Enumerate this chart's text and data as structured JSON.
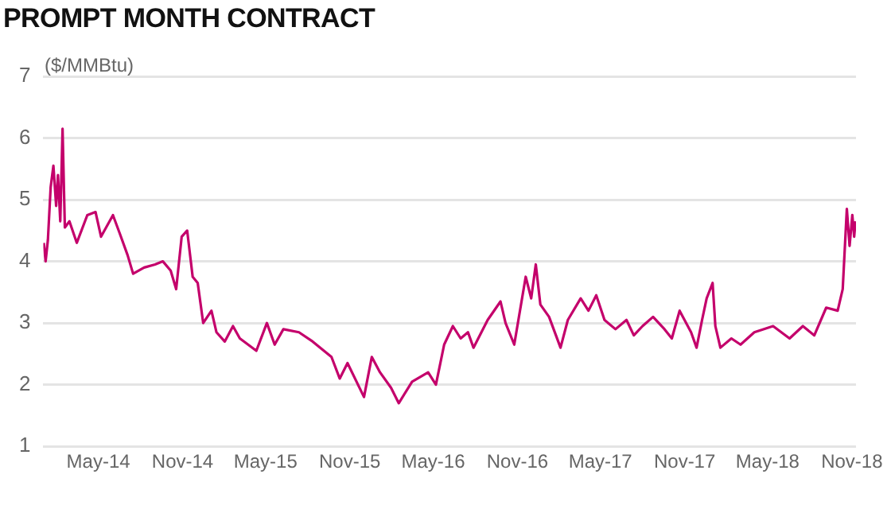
{
  "chart_data": {
    "type": "line",
    "title": "PROMPT MONTH CONTRACT",
    "ylabel": "($/MMBtu)",
    "x": [
      "2014-01-02",
      "2014-01-06",
      "2014-01-11",
      "2014-01-17",
      "2014-01-23",
      "2014-01-29",
      "2014-02-02",
      "2014-02-07",
      "2014-02-12",
      "2014-02-17",
      "2014-02-27",
      "2014-03-15",
      "2014-04-07",
      "2014-04-25",
      "2014-05-07",
      "2014-06-02",
      "2014-06-17",
      "2014-07-04",
      "2014-07-16",
      "2014-08-09",
      "2014-09-02",
      "2014-09-19",
      "2014-10-06",
      "2014-10-18",
      "2014-10-30",
      "2014-11-11",
      "2014-11-23",
      "2014-12-04",
      "2014-12-16",
      "2015-01-03",
      "2015-01-14",
      "2015-02-01",
      "2015-02-19",
      "2015-03-06",
      "2015-03-24",
      "2015-04-11",
      "2015-05-04",
      "2015-05-21",
      "2015-06-09",
      "2015-07-13",
      "2015-08-12",
      "2015-09-22",
      "2015-10-10",
      "2015-10-27",
      "2015-12-02",
      "2015-12-19",
      "2016-01-06",
      "2016-01-30",
      "2016-02-16",
      "2016-03-16",
      "2016-04-20",
      "2016-05-07",
      "2016-05-25",
      "2016-06-13",
      "2016-06-30",
      "2016-07-16",
      "2016-07-28",
      "2016-08-28",
      "2016-09-25",
      "2016-10-06",
      "2016-10-25",
      "2016-11-19",
      "2016-12-01",
      "2016-12-11",
      "2016-12-21",
      "2017-01-09",
      "2017-02-03",
      "2017-02-19",
      "2017-03-19",
      "2017-04-05",
      "2017-04-22",
      "2017-05-10",
      "2017-06-03",
      "2017-06-27",
      "2017-07-13",
      "2017-08-01",
      "2017-08-24",
      "2017-09-18",
      "2017-10-04",
      "2017-10-21",
      "2017-11-15",
      "2017-11-27",
      "2017-12-09",
      "2017-12-19",
      "2018-01-01",
      "2018-01-07",
      "2018-01-18",
      "2018-02-11",
      "2018-03-03",
      "2018-04-02",
      "2018-05-13",
      "2018-06-18",
      "2018-07-17",
      "2018-08-11",
      "2018-09-06",
      "2018-10-01",
      "2018-10-12",
      "2018-10-21",
      "2018-10-27",
      "2018-11-02",
      "2018-11-06",
      "2018-11-09"
    ],
    "series": [
      {
        "color": "#c4006b",
        "values": [
          4.3,
          4.0,
          4.35,
          5.2,
          5.55,
          4.9,
          5.4,
          4.65,
          6.15,
          4.55,
          4.65,
          4.3,
          4.75,
          4.8,
          4.4,
          4.75,
          4.45,
          4.1,
          3.8,
          3.9,
          3.95,
          4.0,
          3.85,
          3.55,
          4.4,
          4.5,
          3.75,
          3.65,
          3.0,
          3.2,
          2.85,
          2.7,
          2.95,
          2.75,
          2.65,
          2.55,
          3.0,
          2.65,
          2.9,
          2.85,
          2.7,
          2.45,
          2.1,
          2.35,
          1.8,
          2.45,
          2.2,
          1.95,
          1.7,
          2.05,
          2.2,
          2.0,
          2.65,
          2.95,
          2.75,
          2.85,
          2.6,
          3.05,
          3.35,
          3.0,
          2.65,
          3.75,
          3.4,
          3.95,
          3.3,
          3.1,
          2.6,
          3.05,
          3.4,
          3.2,
          3.45,
          3.05,
          2.9,
          3.05,
          2.8,
          2.95,
          3.1,
          2.9,
          2.75,
          3.2,
          2.85,
          2.6,
          3.05,
          3.4,
          3.65,
          2.95,
          2.6,
          2.75,
          2.65,
          2.85,
          2.95,
          2.75,
          2.95,
          2.8,
          3.25,
          3.2,
          3.55,
          4.85,
          4.25,
          4.75,
          4.4,
          4.65
        ]
      }
    ],
    "xlim": [
      "2014-01-01",
      "2018-11-10"
    ],
    "xticks": [
      {
        "value": "2014-05-01",
        "label": "May-14"
      },
      {
        "value": "2014-11-01",
        "label": "Nov-14"
      },
      {
        "value": "2015-05-01",
        "label": "May-15"
      },
      {
        "value": "2015-11-01",
        "label": "Nov-15"
      },
      {
        "value": "2016-05-01",
        "label": "May-16"
      },
      {
        "value": "2016-11-01",
        "label": "Nov-16"
      },
      {
        "value": "2017-05-01",
        "label": "May-17"
      },
      {
        "value": "2017-11-01",
        "label": "Nov-17"
      },
      {
        "value": "2018-05-01",
        "label": "May-18"
      },
      {
        "value": "2018-11-01",
        "label": "Nov-18"
      }
    ],
    "ylim": [
      1,
      7
    ],
    "yticks": [
      1,
      2,
      3,
      4,
      5,
      6,
      7
    ],
    "grid": "y",
    "legend": false,
    "marker": "none",
    "line_style": "solid"
  }
}
